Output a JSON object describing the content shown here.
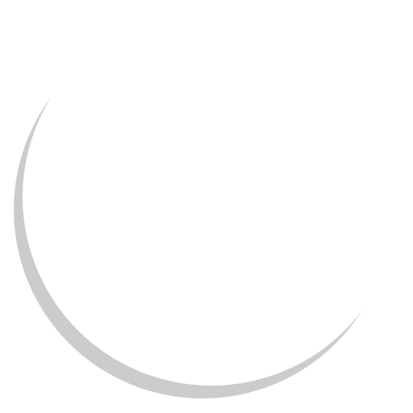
{
  "graphic": {
    "icon": "crescent-shadow-icon",
    "colors": {
      "background": "#ffffff",
      "shadow": "#cccccc",
      "face": "#ffffff"
    }
  }
}
